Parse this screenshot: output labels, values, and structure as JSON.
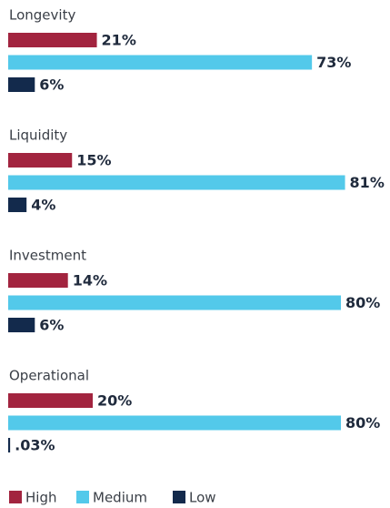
{
  "chart_data": {
    "type": "hbar",
    "categories": [
      "Longevity",
      "Liquidity",
      "Investment",
      "Operational"
    ],
    "series": [
      {
        "name": "High",
        "color": "#a2243f",
        "values": [
          21,
          15,
          14,
          20
        ],
        "value_labels": [
          "21%",
          "15%",
          "14%",
          "20%"
        ]
      },
      {
        "name": "Medium",
        "color": "#53c9ea",
        "values": [
          73,
          81,
          80,
          80
        ],
        "value_labels": [
          "73%",
          "81%",
          "80%",
          "80%"
        ]
      },
      {
        "name": "Low",
        "color": "#132a4c",
        "values": [
          6,
          4,
          6,
          0.03
        ],
        "value_labels": [
          "6%",
          "4%",
          "6%",
          ".03%"
        ]
      }
    ],
    "legend": "bottom-left"
  }
}
